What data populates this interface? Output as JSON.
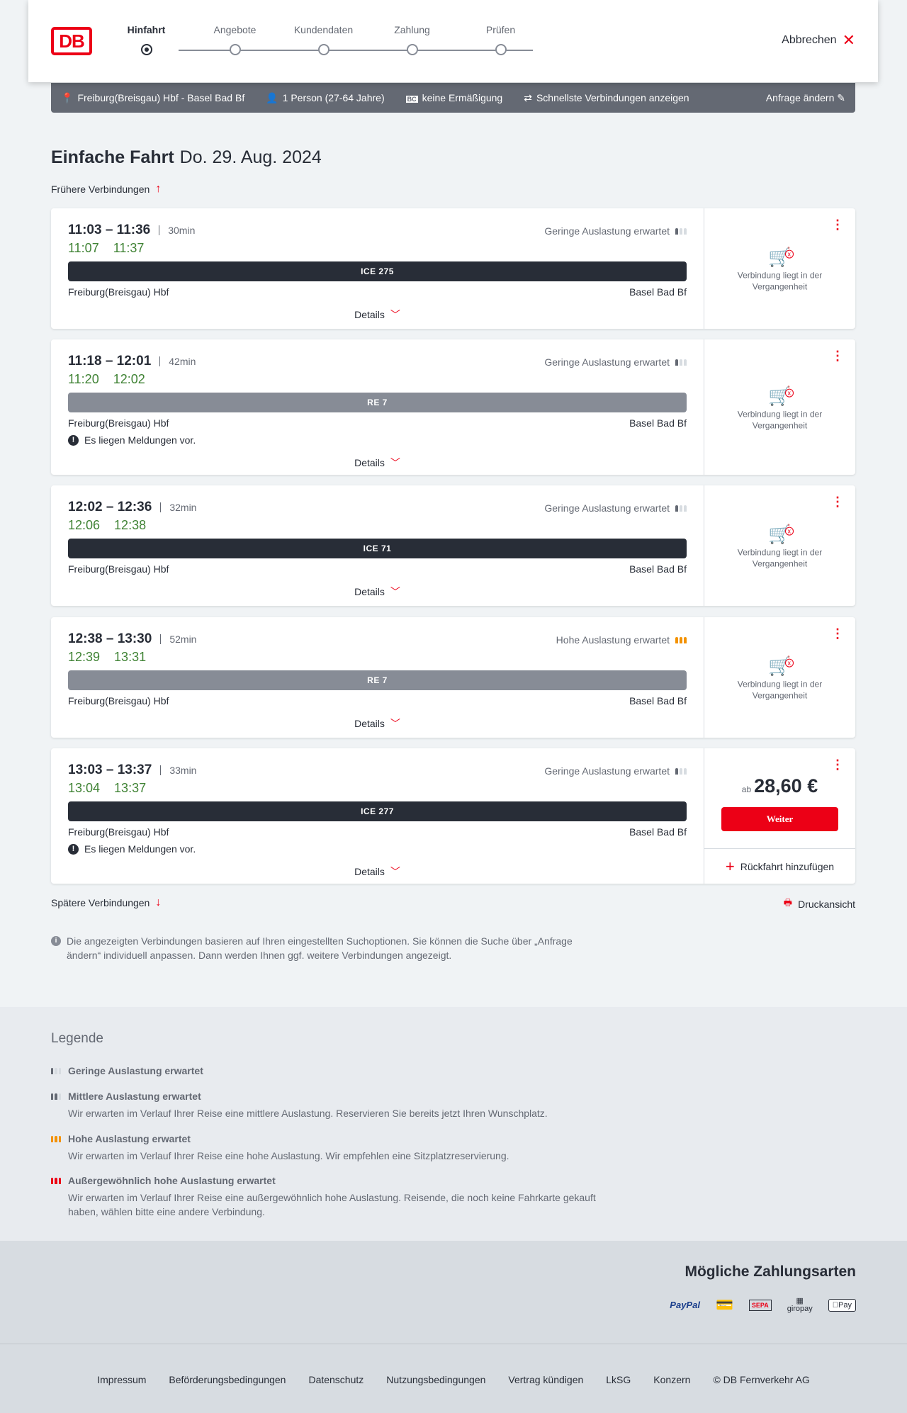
{
  "header": {
    "logo": "DB",
    "steps": [
      "Hinfahrt",
      "Angebote",
      "Kundendaten",
      "Zahlung",
      "Prüfen"
    ],
    "active_step": 0,
    "cancel": "Abbrechen"
  },
  "summary": {
    "route": "Freiburg(Breisgau) Hbf - Basel Bad Bf",
    "persons": "1 Person (27-64 Jahre)",
    "discount": "keine Ermäßigung",
    "option": "Schnellste Verbindungen anzeigen",
    "edit": "Anfrage ändern"
  },
  "title": {
    "kind": "Einfache Fahrt",
    "date": "Do. 29. Aug. 2024"
  },
  "earlier": "Frühere Verbindungen",
  "later": "Spätere Verbindungen",
  "print": "Druckansicht",
  "connections": [
    {
      "time": "11:03 – 11:36",
      "duration": "30min",
      "rt_dep": "11:07",
      "rt_arr": "11:37",
      "load": "Geringe Auslastung erwartet",
      "load_level": "low",
      "train": "ICE 275",
      "type": "ice",
      "from": "Freiburg(Breisgau) Hbf",
      "to": "Basel Bad Bf",
      "message": "",
      "details": "Details",
      "status": "Verbindung liegt in der Vergangenheit"
    },
    {
      "time": "11:18 – 12:01",
      "duration": "42min",
      "rt_dep": "11:20",
      "rt_arr": "12:02",
      "load": "Geringe Auslastung erwartet",
      "load_level": "low",
      "train": "RE 7",
      "type": "re",
      "from": "Freiburg(Breisgau) Hbf",
      "to": "Basel Bad Bf",
      "message": "Es liegen Meldungen vor.",
      "details": "Details",
      "status": "Verbindung liegt in der Vergangenheit"
    },
    {
      "time": "12:02 – 12:36",
      "duration": "32min",
      "rt_dep": "12:06",
      "rt_arr": "12:38",
      "load": "Geringe Auslastung erwartet",
      "load_level": "low",
      "train": "ICE 71",
      "type": "ice",
      "from": "Freiburg(Breisgau) Hbf",
      "to": "Basel Bad Bf",
      "message": "",
      "details": "Details",
      "status": "Verbindung liegt in der Vergangenheit"
    },
    {
      "time": "12:38 – 13:30",
      "duration": "52min",
      "rt_dep": "12:39",
      "rt_arr": "13:31",
      "load": "Hohe Auslastung erwartet",
      "load_level": "high",
      "train": "RE 7",
      "type": "re",
      "from": "Freiburg(Breisgau) Hbf",
      "to": "Basel Bad Bf",
      "message": "",
      "details": "Details",
      "status": "Verbindung liegt in der Vergangenheit"
    },
    {
      "time": "13:03 – 13:37",
      "duration": "33min",
      "rt_dep": "13:04",
      "rt_arr": "13:37",
      "load": "Geringe Auslastung erwartet",
      "load_level": "low",
      "train": "ICE 277",
      "type": "ice",
      "from": "Freiburg(Breisgau) Hbf",
      "to": "Basel Bad Bf",
      "message": "Es liegen Meldungen vor.",
      "details": "Details",
      "price_prefix": "ab",
      "price": "28,60 €",
      "button": "Weiter",
      "return": "Rückfahrt hinzufügen"
    }
  ],
  "info": "Die angezeigten Verbindungen basieren auf Ihren eingestellten Suchoptionen. Sie können die Suche über „Anfrage ändern“ individuell anpassen. Dann werden Ihnen ggf. weitere Verbindungen angezeigt.",
  "legend": {
    "title": "Legende",
    "items": [
      {
        "title": "Geringe Auslastung erwartet",
        "text": ""
      },
      {
        "title": "Mittlere Auslastung erwartet",
        "text": "Wir erwarten im Verlauf Ihrer Reise eine mittlere Auslastung. Reservieren Sie bereits jetzt Ihren Wunschplatz."
      },
      {
        "title": "Hohe Auslastung erwartet",
        "text": "Wir erwarten im Verlauf Ihrer Reise eine hohe Auslastung. Wir empfehlen eine Sitzplatzreservierung."
      },
      {
        "title": "Außergewöhnlich hohe Auslastung erwartet",
        "text": "Wir erwarten im Verlauf Ihrer Reise eine außergewöhnlich hohe Auslastung. Reisende, die noch keine Fahrkarte gekauft haben, wählen bitte eine andere Verbindung."
      }
    ]
  },
  "payment": {
    "title": "Mögliche Zahlungsarten",
    "methods": [
      "PayPal",
      "SEPA",
      "giropay",
      "Pay"
    ]
  },
  "footer": [
    "Impressum",
    "Beförderungsbedingungen",
    "Datenschutz",
    "Nutzungsbedingungen",
    "Vertrag kündigen",
    "LkSG",
    "Konzern",
    "© DB Fernverkehr AG"
  ],
  "colors": {
    "brand": "#ec0016",
    "dark": "#282d37",
    "realtime": "#408335",
    "high_load": "#f39200"
  }
}
